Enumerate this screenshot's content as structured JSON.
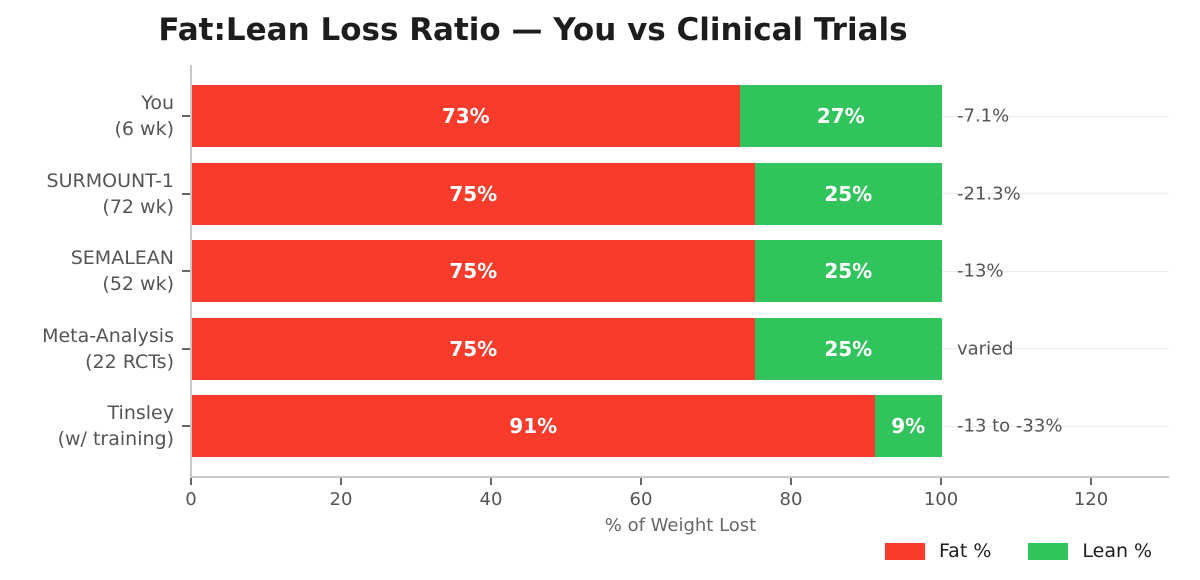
{
  "chart_data": {
    "type": "bar",
    "orientation": "horizontal-stacked",
    "title": "Fat:Lean Loss Ratio — You vs Clinical Trials",
    "xlabel": "% of Weight Lost",
    "xlim": [
      0,
      130
    ],
    "xticks": [
      0,
      20,
      40,
      60,
      80,
      100,
      120
    ],
    "grid": "faint horizontal line at each category center",
    "legend_position": "bottom-right",
    "categories": [
      [
        "You",
        "(6 wk)"
      ],
      [
        "SURMOUNT-1",
        "(72 wk)"
      ],
      [
        "SEMALEAN",
        "(52 wk)"
      ],
      [
        "Meta-Analysis",
        "(22 RCTs)"
      ],
      [
        "Tinsley",
        "(w/ training)"
      ]
    ],
    "series": [
      {
        "name": "Fat %",
        "color": "#f93b2c",
        "values": [
          73,
          75,
          75,
          75,
          91
        ],
        "labels": [
          "73%",
          "75%",
          "75%",
          "75%",
          "91%"
        ]
      },
      {
        "name": "Lean %",
        "color": "#32c45c",
        "values": [
          27,
          25,
          25,
          25,
          9
        ],
        "labels": [
          "27%",
          "25%",
          "25%",
          "25%",
          "9%"
        ]
      }
    ],
    "annotations": [
      "-7.1%",
      "-21.3%",
      "-13%",
      "varied",
      "-13 to -33%"
    ],
    "colors": {
      "title_text": "#1d1d1d",
      "axis_line": "#c8c8c8",
      "tick_mark": "#666666",
      "label_text": "#555555",
      "gridline": "#ededed",
      "bar_label_text": "#ffffff"
    }
  }
}
